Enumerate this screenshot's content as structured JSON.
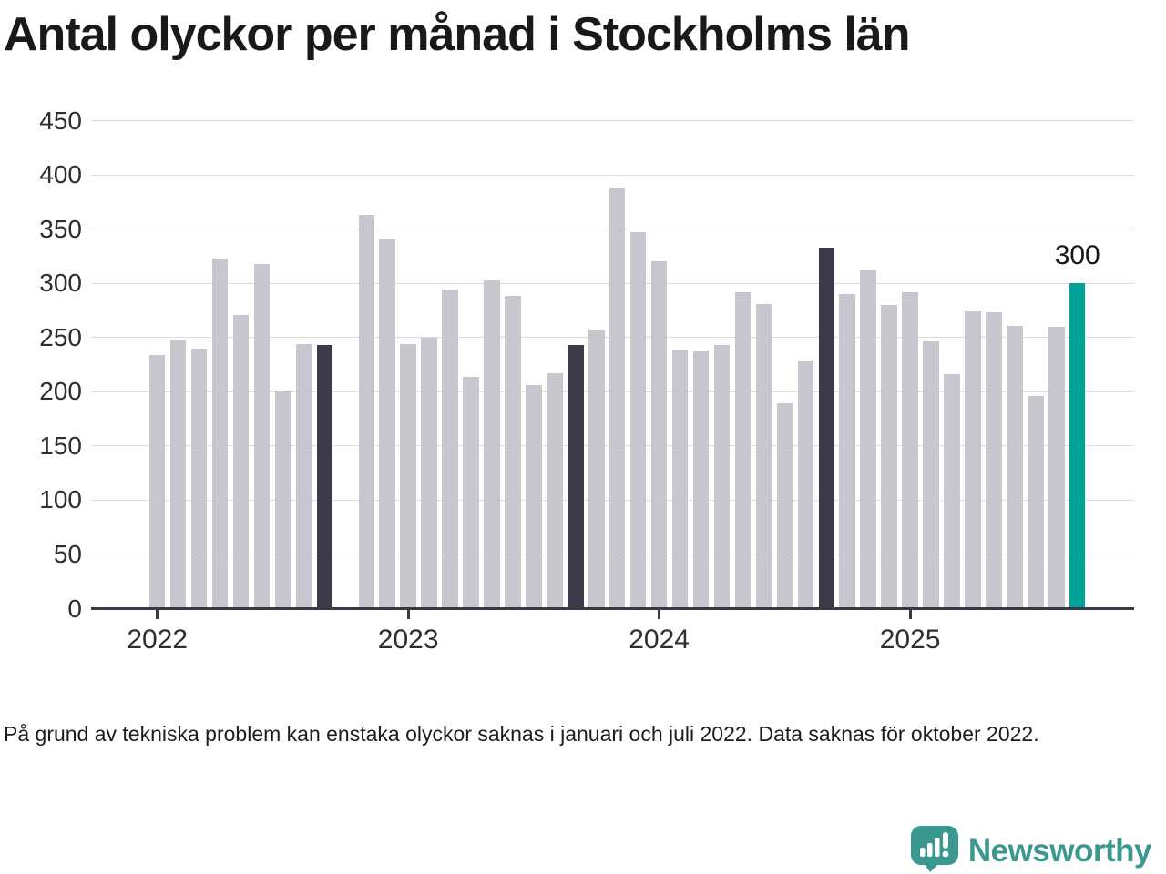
{
  "header": {
    "title": "Antal olyckor per månad i Stockholms län"
  },
  "footnote": {
    "text": "På grund av tekniska problem kan enstaka olyckor saknas i januari och juli 2022. Data saknas för oktober 2022."
  },
  "branding": {
    "name": "Newsworthy",
    "icon": "newsworthy-speech-bubble-chart-icon"
  },
  "colors": {
    "bar_default": "#c8c7d0",
    "bar_highlight_dark": "#3b3a48",
    "bar_highlight_accent": "#00a39a",
    "axis": "#3a3a46",
    "gridline": "#dcdcdc",
    "text": "#1d1d1d",
    "brand_teal": "#3b988f"
  },
  "chart_data": {
    "type": "bar",
    "title": "Antal olyckor per månad i Stockholms län",
    "xlabel": "",
    "ylabel": "",
    "ylim": [
      0,
      450
    ],
    "yticks": [
      0,
      50,
      100,
      150,
      200,
      250,
      300,
      350,
      400,
      450
    ],
    "grid": true,
    "legend": false,
    "x": [
      "2022-01",
      "2022-02",
      "2022-03",
      "2022-04",
      "2022-05",
      "2022-06",
      "2022-07",
      "2022-08",
      "2022-09",
      "2022-10",
      "2022-11",
      "2022-12",
      "2023-01",
      "2023-02",
      "2023-03",
      "2023-04",
      "2023-05",
      "2023-06",
      "2023-07",
      "2023-08",
      "2023-09",
      "2023-10",
      "2023-11",
      "2023-12",
      "2024-01",
      "2024-02",
      "2024-03",
      "2024-04",
      "2024-05",
      "2024-06",
      "2024-07",
      "2024-08",
      "2024-09",
      "2024-10",
      "2024-11",
      "2024-12",
      "2025-01",
      "2025-02",
      "2025-03",
      "2025-04",
      "2025-05",
      "2025-06",
      "2025-07",
      "2025-08",
      "2025-09"
    ],
    "values": [
      234,
      248,
      240,
      323,
      271,
      318,
      201,
      244,
      243,
      null,
      363,
      341,
      244,
      250,
      294,
      214,
      303,
      288,
      206,
      217,
      243,
      257,
      388,
      347,
      320,
      239,
      238,
      243,
      292,
      281,
      189,
      229,
      333,
      290,
      312,
      280,
      292,
      246,
      216,
      274,
      273,
      261,
      196,
      260,
      300
    ],
    "missing_months": [
      "2022-10"
    ],
    "highlight_dark_months": [
      "2022-09",
      "2023-09",
      "2024-09"
    ],
    "highlight_accent_month": "2025-09",
    "annotation": {
      "x": "2025-09",
      "label": "300"
    },
    "xticks": [
      {
        "x": "2022-01",
        "label": "2022"
      },
      {
        "x": "2023-01",
        "label": "2023"
      },
      {
        "x": "2024-01",
        "label": "2024"
      },
      {
        "x": "2025-01",
        "label": "2025"
      }
    ]
  }
}
